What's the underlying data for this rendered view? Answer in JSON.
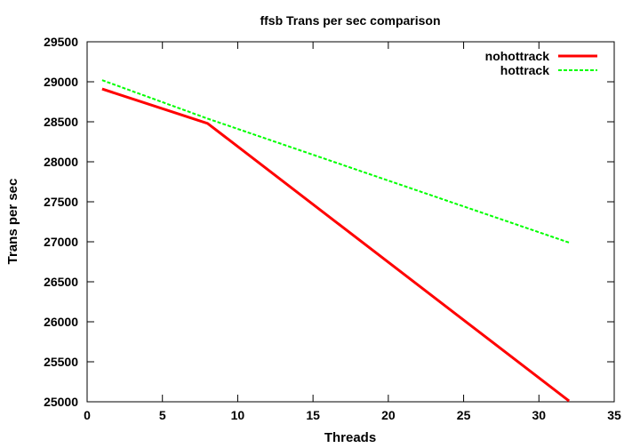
{
  "chart_data": {
    "type": "line",
    "title": "ffsb Trans per sec comparison",
    "xlabel": "Threads",
    "ylabel": "Trans per sec",
    "xlim": [
      0,
      35
    ],
    "ylim": [
      25000,
      29500
    ],
    "xticks": [
      0,
      5,
      10,
      15,
      20,
      25,
      30,
      35
    ],
    "yticks": [
      25000,
      25500,
      26000,
      26500,
      27000,
      27500,
      28000,
      28500,
      29000,
      29500
    ],
    "grid": false,
    "legend_position": "top-right",
    "series": [
      {
        "name": "nohottrack",
        "color": "#ff0000",
        "dash": "solid",
        "x": [
          1,
          8,
          32
        ],
        "y": [
          28910,
          28480,
          25010
        ]
      },
      {
        "name": "hottrack",
        "color": "#00ff00",
        "dash": "dashed",
        "x": [
          1,
          8,
          32
        ],
        "y": [
          29020,
          28540,
          26990
        ]
      }
    ]
  }
}
